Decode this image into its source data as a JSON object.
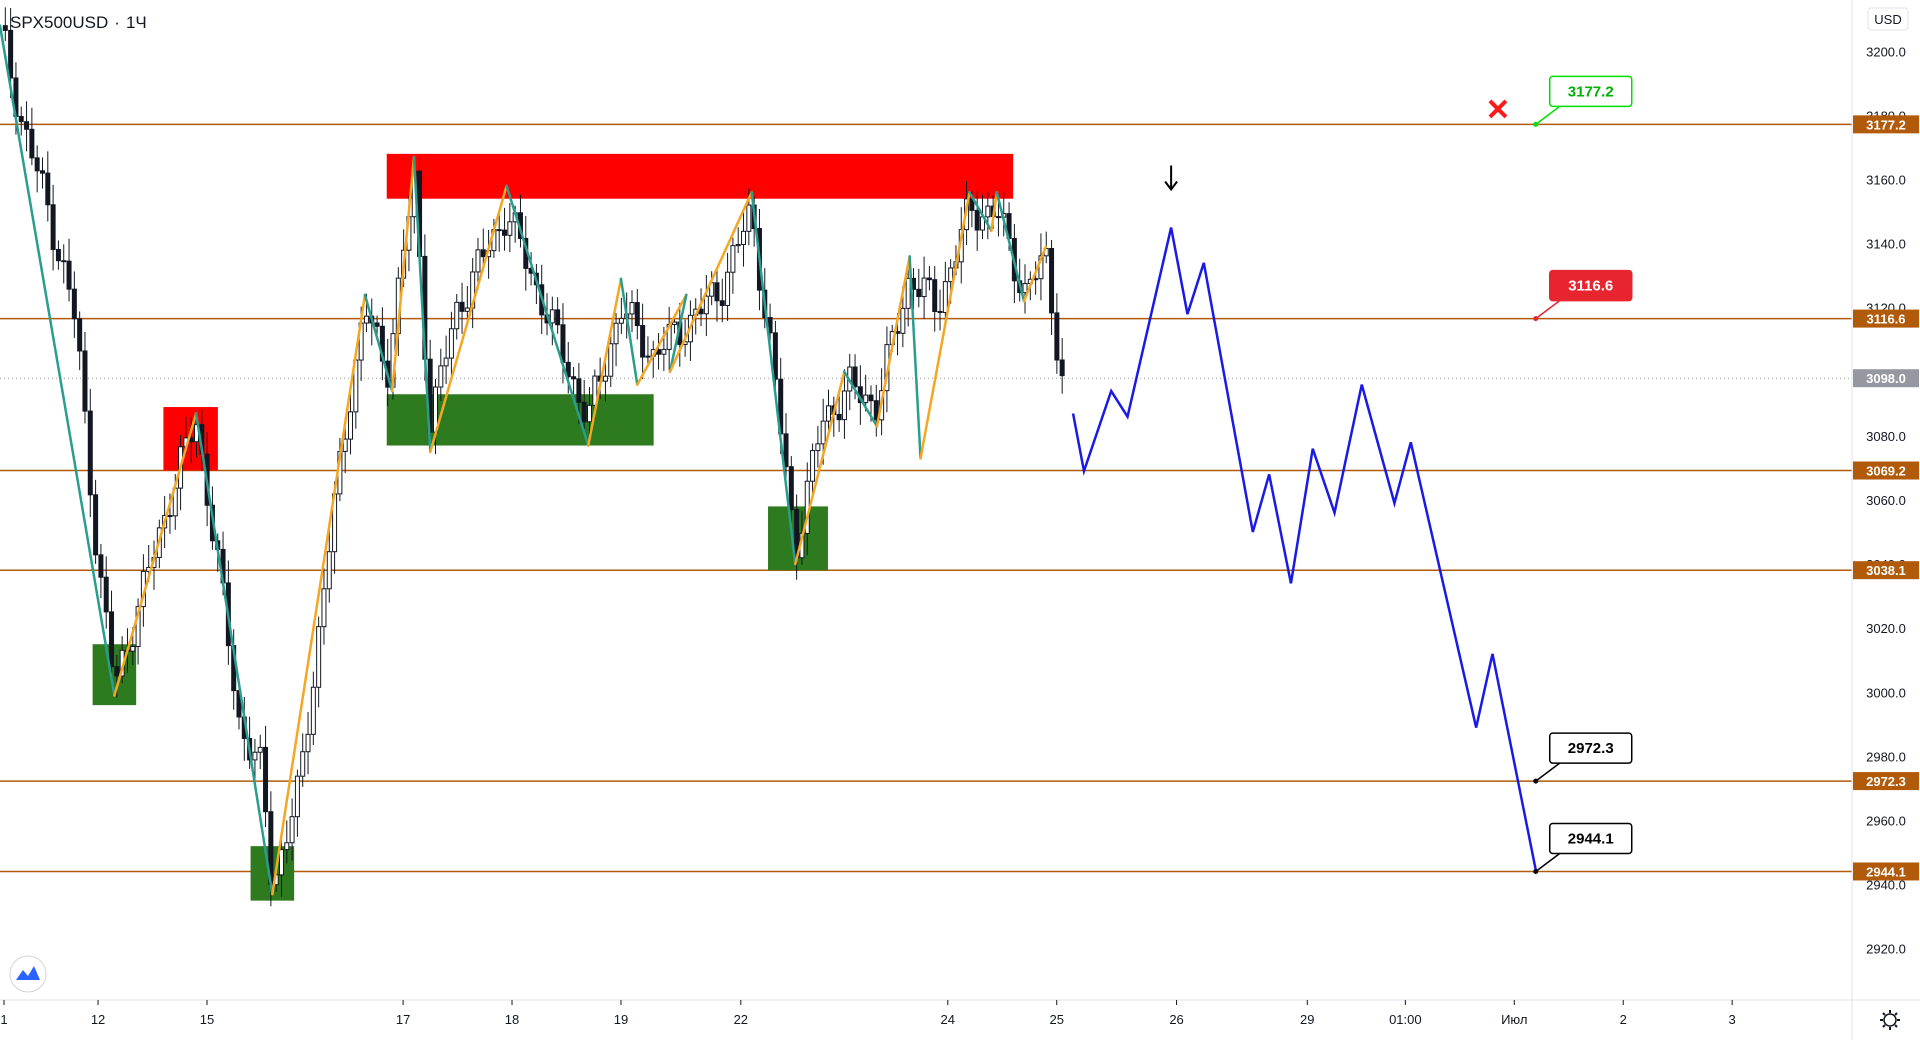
{
  "header": {
    "symbol": "SPX500USD",
    "separator": "·",
    "interval": "1Ч"
  },
  "currency": "USD",
  "colors": {
    "level_line": "#b05a0a",
    "level_label_bg": "#b05a0a",
    "current_label_bg": "#9598a1",
    "supply_zone": "#ff0000",
    "demand_zone": "#2e7a1e",
    "zigzag_up": "#f5a623",
    "zigzag_down": "#2a9d8f",
    "forecast": "#1a1ae6",
    "candle": "#131722",
    "callout_green": "#00e000",
    "callout_red": "#e8252e",
    "callout_black": "#000000"
  },
  "chart_data": {
    "type": "line",
    "title": "SPX500USD · 1Ч",
    "ylim": [
      2904,
      3216
    ],
    "y_ticks": [
      3200.0,
      3180.0,
      3160.0,
      3140.0,
      3120.0,
      3098.0,
      3080.0,
      3060.0,
      3040.0,
      3020.0,
      3000.0,
      2980.0,
      2960.0,
      2940.0,
      2920.0
    ],
    "y_tick_labels": [
      "3200.0",
      "3180.0",
      "3160.0",
      "3140.0",
      "3120.0",
      "3098.0",
      "3080.0",
      "3060.0",
      "3040.0",
      "3020.0",
      "3000.0",
      "2980.0",
      "2960.0",
      "2940.0",
      "2920.0"
    ],
    "x_ticks": [
      {
        "label": "1",
        "x": 0
      },
      {
        "label": "12",
        "x": 0.9
      },
      {
        "label": "15",
        "x": 1.9
      },
      {
        "label": "17",
        "x": 3.7
      },
      {
        "label": "18",
        "x": 4.7
      },
      {
        "label": "19",
        "x": 5.7
      },
      {
        "label": "22",
        "x": 6.8
      },
      {
        "label": "24",
        "x": 8.7
      },
      {
        "label": "25",
        "x": 9.7
      },
      {
        "label": "26",
        "x": 10.8
      },
      {
        "label": "29",
        "x": 12
      },
      {
        "label": "01:00",
        "x": 12.9
      },
      {
        "label": "Июл",
        "x": 13.9
      },
      {
        "label": "2",
        "x": 14.9
      },
      {
        "label": "3",
        "x": 15.9
      }
    ],
    "x_range": [
      0,
      17
    ],
    "current_price": 3098.0,
    "levels": [
      {
        "value": 3177.2,
        "label": "3177.2"
      },
      {
        "value": 3116.6,
        "label": "3116.6"
      },
      {
        "value": 3069.2,
        "label": "3069.2"
      },
      {
        "value": 3038.1,
        "label": "3038.1"
      },
      {
        "value": 2972.3,
        "label": "2972.3"
      },
      {
        "value": 2944.1,
        "label": "2944.1"
      }
    ],
    "zones": [
      {
        "kind": "supply",
        "x0": 1.5,
        "x1": 2.0,
        "y0": 3069.2,
        "y1": 3089
      },
      {
        "kind": "supply",
        "x0": 3.55,
        "x1": 9.3,
        "y0": 3154,
        "y1": 3168
      },
      {
        "kind": "demand",
        "x0": 0.85,
        "x1": 1.25,
        "y0": 2996,
        "y1": 3015
      },
      {
        "kind": "demand",
        "x0": 2.3,
        "x1": 2.7,
        "y0": 2935,
        "y1": 2952
      },
      {
        "kind": "demand",
        "x0": 3.55,
        "x1": 6.0,
        "y0": 3077,
        "y1": 3093
      },
      {
        "kind": "demand",
        "x0": 7.05,
        "x1": 7.6,
        "y0": 3038.1,
        "y1": 3058
      }
    ],
    "zigzag": [
      {
        "x": 0.0,
        "y": 3208
      },
      {
        "x": 1.05,
        "y": 2999
      },
      {
        "x": 1.8,
        "y": 3087
      },
      {
        "x": 2.5,
        "y": 2937
      },
      {
        "x": 3.35,
        "y": 3124
      },
      {
        "x": 3.6,
        "y": 3094
      },
      {
        "x": 3.8,
        "y": 3167
      },
      {
        "x": 3.95,
        "y": 3075
      },
      {
        "x": 4.65,
        "y": 3158
      },
      {
        "x": 5.4,
        "y": 3077
      },
      {
        "x": 5.7,
        "y": 3129
      },
      {
        "x": 5.85,
        "y": 3096
      },
      {
        "x": 6.3,
        "y": 3124
      },
      {
        "x": 6.15,
        "y": 3100
      },
      {
        "x": 6.9,
        "y": 3156
      },
      {
        "x": 7.3,
        "y": 3040
      },
      {
        "x": 7.75,
        "y": 3100
      },
      {
        "x": 8.05,
        "y": 3083
      },
      {
        "x": 8.35,
        "y": 3136
      },
      {
        "x": 8.45,
        "y": 3073
      },
      {
        "x": 8.9,
        "y": 3156
      },
      {
        "x": 9.1,
        "y": 3144
      },
      {
        "x": 9.15,
        "y": 3156
      },
      {
        "x": 9.4,
        "y": 3122
      },
      {
        "x": 9.6,
        "y": 3139
      }
    ],
    "forecast": [
      {
        "x": 9.85,
        "y": 3087
      },
      {
        "x": 9.95,
        "y": 3069
      },
      {
        "x": 10.2,
        "y": 3094
      },
      {
        "x": 10.35,
        "y": 3086
      },
      {
        "x": 10.75,
        "y": 3145
      },
      {
        "x": 10.9,
        "y": 3118
      },
      {
        "x": 11.05,
        "y": 3134
      },
      {
        "x": 11.5,
        "y": 3050
      },
      {
        "x": 11.65,
        "y": 3068
      },
      {
        "x": 11.85,
        "y": 3034
      },
      {
        "x": 12.05,
        "y": 3076
      },
      {
        "x": 12.25,
        "y": 3056
      },
      {
        "x": 12.5,
        "y": 3096
      },
      {
        "x": 12.8,
        "y": 3059
      },
      {
        "x": 12.95,
        "y": 3078
      },
      {
        "x": 13.55,
        "y": 2989
      },
      {
        "x": 13.7,
        "y": 3012
      },
      {
        "x": 14.1,
        "y": 2944.1
      }
    ],
    "price_path": [
      {
        "x": 0.0,
        "y": 3208
      },
      {
        "x": 0.2,
        "y": 3178
      },
      {
        "x": 0.45,
        "y": 3150
      },
      {
        "x": 0.7,
        "y": 3115
      },
      {
        "x": 0.9,
        "y": 3040
      },
      {
        "x": 1.05,
        "y": 3002
      },
      {
        "x": 1.3,
        "y": 3030
      },
      {
        "x": 1.55,
        "y": 3060
      },
      {
        "x": 1.8,
        "y": 3085
      },
      {
        "x": 2.0,
        "y": 3040
      },
      {
        "x": 2.2,
        "y": 2990
      },
      {
        "x": 2.4,
        "y": 2975
      },
      {
        "x": 2.5,
        "y": 2940
      },
      {
        "x": 2.75,
        "y": 2970
      },
      {
        "x": 3.0,
        "y": 3040
      },
      {
        "x": 3.2,
        "y": 3090
      },
      {
        "x": 3.35,
        "y": 3120
      },
      {
        "x": 3.55,
        "y": 3100
      },
      {
        "x": 3.8,
        "y": 3160
      },
      {
        "x": 3.95,
        "y": 3085
      },
      {
        "x": 4.2,
        "y": 3120
      },
      {
        "x": 4.65,
        "y": 3150
      },
      {
        "x": 5.0,
        "y": 3120
      },
      {
        "x": 5.4,
        "y": 3085
      },
      {
        "x": 5.7,
        "y": 3120
      },
      {
        "x": 6.0,
        "y": 3105
      },
      {
        "x": 6.3,
        "y": 3115
      },
      {
        "x": 6.6,
        "y": 3125
      },
      {
        "x": 6.9,
        "y": 3150
      },
      {
        "x": 7.1,
        "y": 3100
      },
      {
        "x": 7.3,
        "y": 3045
      },
      {
        "x": 7.55,
        "y": 3085
      },
      {
        "x": 7.8,
        "y": 3095
      },
      {
        "x": 8.05,
        "y": 3090
      },
      {
        "x": 8.35,
        "y": 3130
      },
      {
        "x": 8.6,
        "y": 3120
      },
      {
        "x": 8.9,
        "y": 3150
      },
      {
        "x": 9.15,
        "y": 3150
      },
      {
        "x": 9.4,
        "y": 3125
      },
      {
        "x": 9.6,
        "y": 3135
      },
      {
        "x": 9.75,
        "y": 3098
      }
    ],
    "callouts": [
      {
        "text": "3177.2",
        "value": 3177.2,
        "x": 13.95,
        "style": "green"
      },
      {
        "text": "3116.6",
        "value": 3116.6,
        "x": 13.95,
        "style": "red"
      },
      {
        "text": "2972.3",
        "value": 2972.3,
        "x": 13.95,
        "style": "black"
      },
      {
        "text": "2944.1",
        "value": 2944.1,
        "x": 13.95,
        "style": "black"
      }
    ],
    "markers": [
      {
        "kind": "cross",
        "x": 13.75,
        "y": 3182
      },
      {
        "kind": "down-arrow",
        "x": 10.75,
        "y": 3160
      }
    ]
  },
  "icons": {
    "logo": "tradingview-logo-icon",
    "settings": "gear-icon"
  }
}
